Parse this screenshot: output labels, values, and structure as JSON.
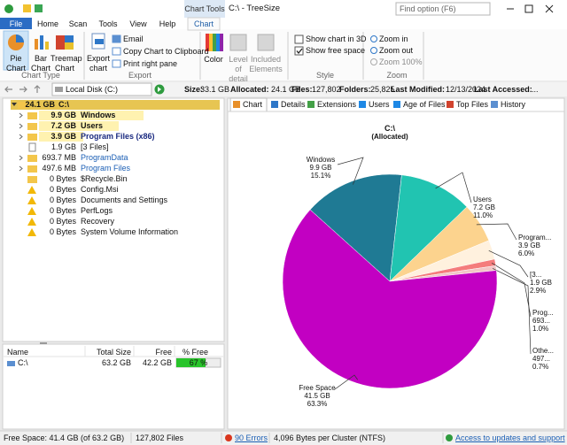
{
  "title_bar": {
    "context_tab": "Chart Tools",
    "window_title": "C:\\ - TreeSize",
    "search": "Find option (F6)"
  },
  "ribbon_tabs": [
    "File",
    "Home",
    "Scan",
    "Tools",
    "View",
    "Help",
    "Chart"
  ],
  "ribbon": {
    "chart_type": {
      "buttons": [
        "Pie Chart",
        "Bar Chart",
        "Treemap Chart"
      ],
      "label": "Chart Type"
    },
    "export": {
      "export_chart": "Export chart",
      "items": [
        "Email",
        "Copy Chart to Clipboard",
        "Print right pane"
      ],
      "label": "Export"
    },
    "buttons": [
      "Color",
      "Level of detail",
      "Included Elements"
    ],
    "style": {
      "options": [
        {
          "text": "Show chart in 3D",
          "checked": false
        },
        {
          "text": "Show free space",
          "checked": true
        }
      ],
      "label": "Style"
    },
    "zoom": {
      "items": [
        "Zoom in",
        "Zoom out",
        "Zoom 100%"
      ],
      "label": "Zoom"
    }
  },
  "address_bar": {
    "location": "Local Disk (C:)",
    "stats": [
      {
        "label": "Size:",
        "value": "33.1 GB"
      },
      {
        "label": "Allocated:",
        "value": "24.1 GB"
      },
      {
        "label": "Files:",
        "value": "127,802"
      },
      {
        "label": "Folders:",
        "value": "25,825"
      },
      {
        "label": "Last Modified:",
        "value": "12/13/2024"
      },
      {
        "label": "Last Accessed:",
        "value": "..."
      }
    ]
  },
  "tree": {
    "rows": [
      {
        "size": "24.1 GB",
        "name": "C:\\"
      },
      {
        "size": "9.9 GB",
        "name": "Windows"
      },
      {
        "size": "7.2 GB",
        "name": "Users"
      },
      {
        "size": "3.9 GB",
        "name": "Program Files (x86)"
      },
      {
        "size": "1.9 GB",
        "name": "[3 Files]"
      },
      {
        "size": "693.7 MB",
        "name": "ProgramData"
      },
      {
        "size": "497.6 MB",
        "name": "Program Files"
      },
      {
        "size": "0 Bytes",
        "name": "$Recycle.Bin"
      },
      {
        "size": "0 Bytes",
        "name": "Config.Msi"
      },
      {
        "size": "0 Bytes",
        "name": "Documents and Settings"
      },
      {
        "size": "0 Bytes",
        "name": "PerfLogs"
      },
      {
        "size": "0 Bytes",
        "name": "Recovery"
      },
      {
        "size": "0 Bytes",
        "name": "System Volume Information"
      }
    ]
  },
  "drives": {
    "columns": [
      "Name",
      "Total Size",
      "Free",
      "% Free"
    ],
    "rows": [
      [
        "C:\\",
        "63.2 GB",
        "42.2 GB",
        "67 %"
      ]
    ]
  },
  "tabs": [
    "Chart",
    "Details",
    "Extensions",
    "Users",
    "Age of Files",
    "Top Files",
    "History"
  ],
  "chart_data": {
    "type": "pie",
    "title": "C:\\",
    "subtitle": "(Allocated)",
    "categories": [
      "Windows",
      "Users",
      "Program...",
      "[3...",
      "Prog...",
      "Othe...",
      "Free Space"
    ],
    "sizes": [
      "9.9 GB",
      "7.2 GB",
      "3.9 GB",
      "1.9 GB",
      "693...",
      "497...",
      "41.5 GB"
    ],
    "values": [
      15.1,
      11,
      6,
      2.9,
      1,
      0.7,
      63.3
    ],
    "value_labels": [
      "15.1%",
      "11.0%",
      "6.0%",
      "2.9%",
      "1.0%",
      "0.7%",
      "63.3%"
    ],
    "colors": [
      "#1f7a94",
      "#21c4b1",
      "#fcd38e",
      "#fff1de",
      "#f47c7c",
      "#f2c6c6",
      "#c200c2"
    ]
  },
  "status_bar": {
    "free_space": "Free Space: 41.4 GB (of 63.2 GB)",
    "files": "127,802 Files",
    "errors": "90 Errors",
    "cluster": "4,096 Bytes per Cluster (NTFS)",
    "support": "Access to updates and support"
  }
}
